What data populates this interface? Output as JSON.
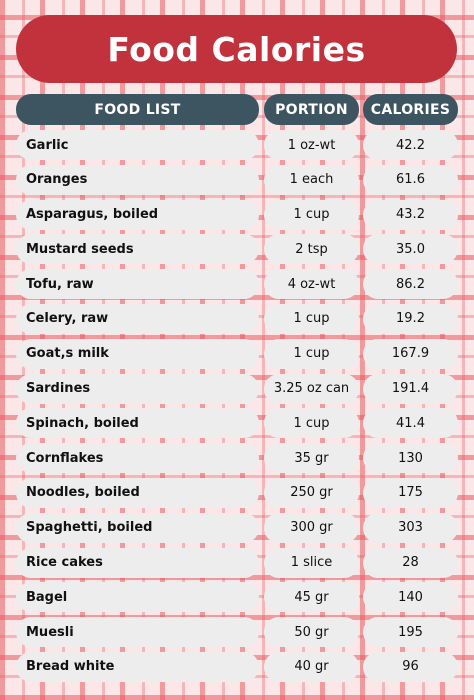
{
  "title": "Food Calories",
  "headers": {
    "food": "FOOD LIST",
    "portion": "PORTION",
    "calories": "CALORIES"
  },
  "rows": [
    {
      "food": "Garlic",
      "portion": "1 oz-wt",
      "calories": "42.2"
    },
    {
      "food": "Oranges",
      "portion": "1 each",
      "calories": "61.6"
    },
    {
      "food": "Asparagus, boiled",
      "portion": "1 cup",
      "calories": "43.2"
    },
    {
      "food": "Mustard seeds",
      "portion": "2 tsp",
      "calories": "35.0"
    },
    {
      "food": "Tofu, raw",
      "portion": "4 oz-wt",
      "calories": "86.2"
    },
    {
      "food": "Celery, raw",
      "portion": "1 cup",
      "calories": "19.2"
    },
    {
      "food": "Goat,s milk",
      "portion": "1 cup",
      "calories": "167.9"
    },
    {
      "food": "Sardines",
      "portion": "3.25 oz can",
      "calories": "191.4"
    },
    {
      "food": "Spinach, boiled",
      "portion": "1 cup",
      "calories": "41.4"
    },
    {
      "food": "Cornflakes",
      "portion": "35 gr",
      "calories": "130"
    },
    {
      "food": "Noodles, boiled",
      "portion": "250 gr",
      "calories": "175"
    },
    {
      "food": "Spaghetti, boiled",
      "portion": "300 gr",
      "calories": "303"
    },
    {
      "food": "Rice cakes",
      "portion": "1 slice",
      "calories": "28"
    },
    {
      "food": "Bagel",
      "portion": "45 gr",
      "calories": "140"
    },
    {
      "food": "Muesli",
      "portion": "50 gr",
      "calories": "195"
    },
    {
      "food": "Bread white",
      "portion": "40 gr",
      "calories": "96"
    }
  ],
  "colors": {
    "title_bg": "#c2323c",
    "header_bg": "#3d5461",
    "cell_bg": "#ededed",
    "gingham": "#e85a62"
  }
}
